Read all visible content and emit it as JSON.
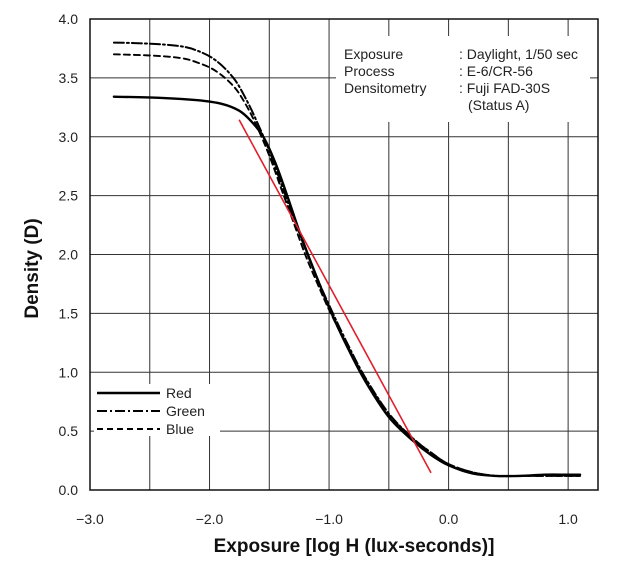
{
  "chart_data": {
    "type": "line",
    "title": "",
    "xlabel": "Exposure [log H (lux-seconds)]",
    "ylabel": "Density (D)",
    "xlim": [
      -3.0,
      1.25
    ],
    "ylim": [
      0.0,
      4.0
    ],
    "x_ticks": [
      -3.0,
      -2.5,
      -2.0,
      -1.5,
      -1.0,
      -0.5,
      0.0,
      0.5,
      1.0
    ],
    "x_tick_labels": [
      "−3.0",
      "",
      "−2.0",
      "",
      "−1.0",
      "",
      "0.0",
      "",
      "1.0"
    ],
    "y_ticks": [
      0.0,
      0.5,
      1.0,
      1.5,
      2.0,
      2.5,
      3.0,
      3.5,
      4.0
    ],
    "y_tick_labels": [
      "0.0",
      "0.5",
      "1.0",
      "1.5",
      "2.0",
      "2.5",
      "3.0",
      "3.5",
      "4.0"
    ],
    "grid": true,
    "legend_position": "bottom-left",
    "annotations": [
      {
        "key": "Exposure",
        "value": ": Daylight, 1/50 sec"
      },
      {
        "key": "Process",
        "value": ": E-6/CR-56"
      },
      {
        "key": "Densitometry",
        "value": ": Fuji FAD-30S"
      },
      {
        "key": "",
        "value": "(Status A)"
      }
    ],
    "series": [
      {
        "name": "Red",
        "style": "solid",
        "color": "#000000",
        "x": [
          -2.8,
          -2.4,
          -2.1,
          -1.9,
          -1.75,
          -1.65,
          -1.55,
          -1.45,
          -1.35,
          -1.25,
          -1.15,
          -1.0,
          -0.85,
          -0.7,
          -0.5,
          -0.3,
          -0.15,
          0.0,
          0.2,
          0.4,
          0.6,
          0.8,
          1.0,
          1.1
        ],
        "y": [
          3.34,
          3.33,
          3.31,
          3.28,
          3.22,
          3.13,
          3.0,
          2.78,
          2.5,
          2.2,
          1.93,
          1.55,
          1.22,
          0.93,
          0.62,
          0.42,
          0.3,
          0.21,
          0.14,
          0.12,
          0.12,
          0.13,
          0.13,
          0.13
        ]
      },
      {
        "name": "Green",
        "style": "dash-dot",
        "color": "#000000",
        "x": [
          -2.8,
          -2.5,
          -2.25,
          -2.1,
          -1.95,
          -1.8,
          -1.7,
          -1.6,
          -1.5,
          -1.4,
          -1.3,
          -1.2,
          -1.1,
          -1.0,
          -0.85,
          -0.7,
          -0.5,
          -0.3,
          -0.15,
          0.0,
          0.2,
          0.4,
          0.6,
          0.8,
          1.0,
          1.1
        ],
        "y": [
          3.8,
          3.79,
          3.77,
          3.73,
          3.65,
          3.5,
          3.33,
          3.12,
          2.88,
          2.6,
          2.32,
          2.05,
          1.8,
          1.57,
          1.25,
          0.96,
          0.65,
          0.44,
          0.32,
          0.22,
          0.15,
          0.12,
          0.12,
          0.12,
          0.12,
          0.12
        ]
      },
      {
        "name": "Blue",
        "style": "dashed",
        "color": "#000000",
        "x": [
          -2.8,
          -2.5,
          -2.25,
          -2.1,
          -1.95,
          -1.8,
          -1.7,
          -1.6,
          -1.5,
          -1.4,
          -1.3,
          -1.2,
          -1.1,
          -1.0,
          -0.85,
          -0.7,
          -0.5,
          -0.3,
          -0.15,
          0.0,
          0.2,
          0.4,
          0.6,
          0.8,
          1.0,
          1.1
        ],
        "y": [
          3.7,
          3.69,
          3.67,
          3.63,
          3.56,
          3.43,
          3.28,
          3.08,
          2.84,
          2.56,
          2.28,
          2.0,
          1.76,
          1.53,
          1.23,
          0.95,
          0.64,
          0.44,
          0.32,
          0.22,
          0.15,
          0.12,
          0.12,
          0.12,
          0.12,
          0.12
        ]
      },
      {
        "name": "",
        "style": "solid",
        "color": "#e0202e",
        "x": [
          -1.75,
          -0.15
        ],
        "y": [
          3.14,
          0.15
        ]
      }
    ]
  }
}
